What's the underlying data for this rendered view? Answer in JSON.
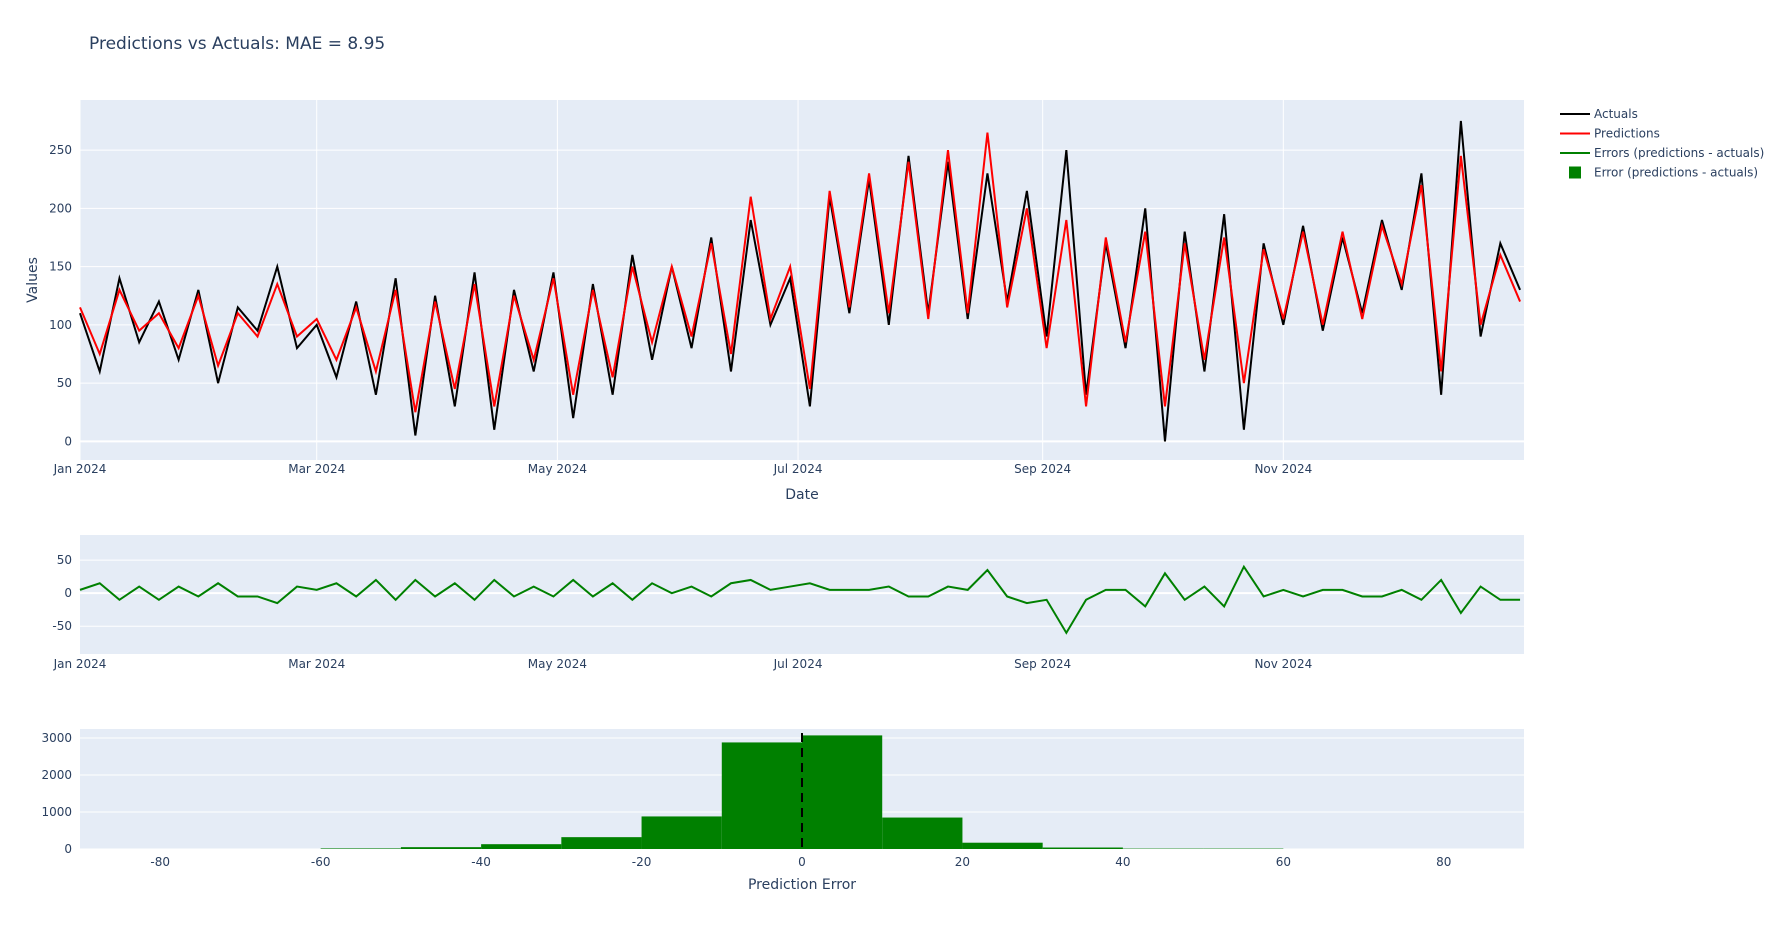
{
  "chart_data": [
    {
      "type": "line",
      "title": "Predictions vs Actuals: MAE = 8.95",
      "xlabel": "Date",
      "ylabel": "Values",
      "x_start": "2024-01-01",
      "x_step_days": 5,
      "xlim": [
        "2024-01-01",
        "2025-01-01"
      ],
      "ylim": [
        -16,
        293
      ],
      "yticks": [
        0,
        50,
        100,
        150,
        200,
        250
      ],
      "xticks": [
        {
          "day": 0,
          "label": "Jan 2024"
        },
        {
          "day": 60,
          "label": "Mar 2024"
        },
        {
          "day": 121,
          "label": "May 2024"
        },
        {
          "day": 182,
          "label": "Jul 2024"
        },
        {
          "day": 244,
          "label": "Sep 2024"
        },
        {
          "day": 305,
          "label": "Nov 2024"
        }
      ],
      "grid": true,
      "series": [
        {
          "name": "Actuals",
          "color": "#000000",
          "values": [
            110,
            60,
            140,
            85,
            120,
            70,
            130,
            50,
            115,
            95,
            150,
            80,
            100,
            55,
            120,
            40,
            140,
            5,
            125,
            30,
            145,
            10,
            130,
            60,
            145,
            20,
            135,
            40,
            160,
            70,
            150,
            80,
            175,
            60,
            190,
            100,
            140,
            30,
            210,
            110,
            225,
            100,
            245,
            110,
            240,
            105,
            230,
            120,
            215,
            90,
            250,
            40,
            170,
            80,
            200,
            0,
            180,
            60,
            195,
            10,
            170,
            100,
            185,
            95,
            175,
            110,
            190,
            130,
            230,
            40,
            275,
            90,
            170,
            130
          ]
        },
        {
          "name": "Predictions",
          "color": "#ff0000",
          "values": [
            115,
            75,
            130,
            95,
            110,
            80,
            125,
            65,
            110,
            90,
            135,
            90,
            105,
            70,
            115,
            60,
            130,
            25,
            120,
            45,
            135,
            30,
            125,
            70,
            140,
            40,
            130,
            55,
            150,
            85,
            150,
            90,
            170,
            75,
            210,
            105,
            150,
            45,
            215,
            115,
            230,
            110,
            240,
            105,
            250,
            110,
            265,
            115,
            200,
            80,
            190,
            30,
            175,
            85,
            180,
            30,
            170,
            70,
            175,
            50,
            165,
            105,
            180,
            100,
            180,
            105,
            185,
            135,
            220,
            60,
            245,
            100,
            160,
            120
          ]
        }
      ]
    },
    {
      "type": "line",
      "title": "",
      "series": [
        {
          "name": "Errors (predictions - actuals)",
          "color": "#008000",
          "derived": "predictions - actuals"
        }
      ],
      "ylim": [
        -92,
        88
      ],
      "yticks": [
        -50,
        0,
        50
      ],
      "xticks_same_as_first": true
    },
    {
      "type": "bar",
      "title": "",
      "xlabel": "Prediction Error",
      "series_name": "Error (predictions - actuals)",
      "color": "#008000",
      "bin_edges": [
        -60,
        -50,
        -40,
        -30,
        -20,
        -10,
        0,
        10,
        20,
        30,
        40,
        50,
        60
      ],
      "counts": [
        15,
        50,
        130,
        320,
        880,
        2880,
        3070,
        850,
        170,
        40,
        10,
        10
      ],
      "xlim": [
        -90,
        90
      ],
      "ylim": [
        0,
        3243
      ],
      "xticks": [
        -80,
        -60,
        -40,
        -20,
        0,
        20,
        40,
        60,
        80
      ],
      "yticks": [
        0,
        1000,
        2000,
        3000
      ],
      "vline": {
        "x": 0,
        "style": "dashed",
        "color": "#000000"
      }
    }
  ],
  "legend": {
    "placement": "top-right-outside",
    "items": [
      {
        "label": "Actuals",
        "color": "#000000",
        "kind": "line"
      },
      {
        "label": "Predictions",
        "color": "#ff0000",
        "kind": "line"
      },
      {
        "label": "Errors (predictions - actuals)",
        "color": "#008000",
        "kind": "line"
      },
      {
        "label": "Error (predictions - actuals)",
        "color": "#008000",
        "kind": "square"
      }
    ]
  }
}
